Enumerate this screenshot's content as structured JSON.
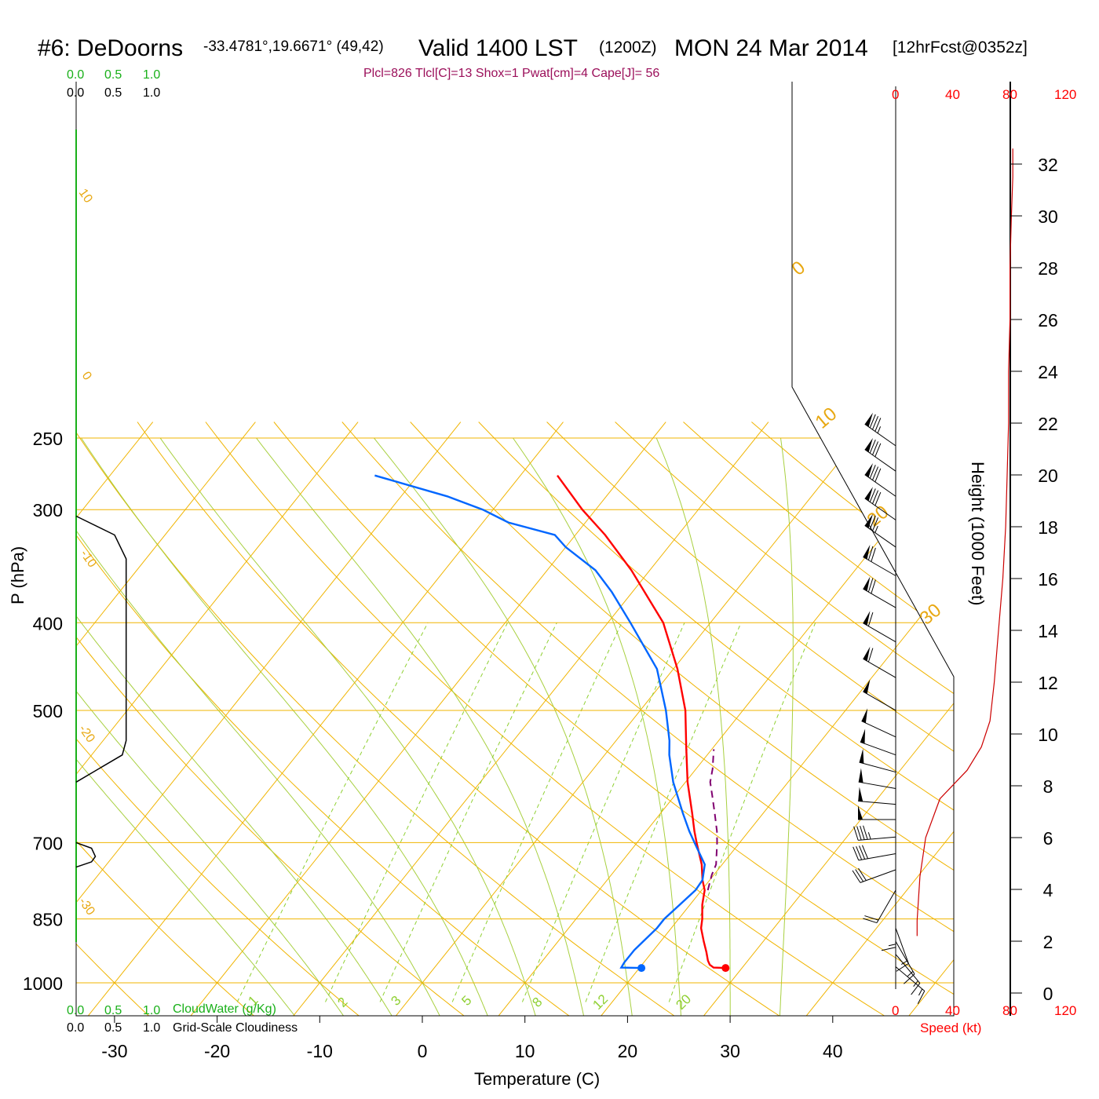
{
  "header": {
    "station": "#6: DeDoorns",
    "coords": "-33.4781°,19.6671° (49,42)",
    "valid": "Valid 1400 LST",
    "zulu": "(1200Z)",
    "date": "MON 24 Mar 2014",
    "forecast": "[12hrFcst@0352z]"
  },
  "params": "Plcl=826 Tlcl[C]=13 Shox=1 Pwat[cm]=4 Cape[J]= 56",
  "cloud_scales": {
    "top_green": [
      "0.0",
      "0.5",
      "1.0"
    ],
    "top_black": [
      "0.0",
      "0.5",
      "1.0"
    ],
    "bottom_green": [
      "0.0",
      "0.5",
      "1.0"
    ],
    "bottom_black": [
      "0.0",
      "0.5",
      "1.0"
    ],
    "cloudwater_label": "CloudWater (g/Kg)",
    "cloudiness_label": "Grid-Scale Cloudiness"
  },
  "speed_scale": {
    "top": [
      "0",
      "40",
      "80",
      "120"
    ],
    "bottom": [
      "0",
      "40",
      "80",
      "120"
    ],
    "label": "Speed (kt)"
  },
  "colors": {
    "temperature": "#ff0000",
    "dewpoint": "#0066ff",
    "parcel": "#800070",
    "isotherm": "#f0b400",
    "dry_adiabat": "#f0b400",
    "moist_adiabat": "#a8d040",
    "mixing_ratio": "#8fd032",
    "cloud_water": "#19b019",
    "speed": "#cc0000"
  },
  "chart_data": {
    "type": "line",
    "title": "",
    "xlabel": "Temperature (C)",
    "ylabel": "P (hPa)",
    "y2label": "Height (1000 Feet)",
    "x_ticks": [
      -30,
      -20,
      -10,
      0,
      10,
      20,
      30,
      40
    ],
    "p_ticks": [
      250,
      300,
      400,
      500,
      700,
      850,
      1000
    ],
    "height_ticks": [
      0,
      2,
      4,
      6,
      8,
      10,
      12,
      14,
      16,
      18,
      20,
      22,
      24,
      26,
      28,
      30,
      32
    ],
    "temperature_labels": [
      "10",
      "0",
      "-10",
      "-20",
      "-30",
      "0",
      "10",
      "20",
      "30"
    ],
    "mixing_ratio_labels": [
      "1",
      "2",
      "3",
      "5",
      "8",
      "12",
      "20"
    ],
    "series": [
      {
        "key": "temperature",
        "name": "",
        "points": [
          [
            963,
            28.4
          ],
          [
            962,
            27.2
          ],
          [
            955,
            26.6
          ],
          [
            945,
            26.1
          ],
          [
            925,
            25.3
          ],
          [
            900,
            24.2
          ],
          [
            870,
            22.9
          ],
          [
            850,
            22.3
          ],
          [
            820,
            21.2
          ],
          [
            800,
            20.6
          ],
          [
            790,
            20.3
          ],
          [
            770,
            19.3
          ],
          [
            740,
            18.0
          ],
          [
            700,
            15.8
          ],
          [
            680,
            14.7
          ],
          [
            650,
            13.1
          ],
          [
            600,
            10.2
          ],
          [
            550,
            7.4
          ],
          [
            500,
            4.4
          ],
          [
            450,
            0.4
          ],
          [
            400,
            -4.6
          ],
          [
            350,
            -11.8
          ],
          [
            320,
            -17.1
          ],
          [
            300,
            -21.3
          ],
          [
            275,
            -26.4
          ]
        ]
      },
      {
        "key": "dewpoint",
        "name": "",
        "points": [
          [
            963,
            20.2
          ],
          [
            962,
            18.2
          ],
          [
            950,
            18.1
          ],
          [
            920,
            18.1
          ],
          [
            900,
            18.3
          ],
          [
            870,
            18.6
          ],
          [
            850,
            18.6
          ],
          [
            820,
            19.0
          ],
          [
            790,
            19.4
          ],
          [
            770,
            19.3
          ],
          [
            740,
            18.3
          ],
          [
            700,
            15.6
          ],
          [
            680,
            14.2
          ],
          [
            650,
            12.2
          ],
          [
            600,
            8.8
          ],
          [
            560,
            6.3
          ],
          [
            540,
            5.2
          ],
          [
            500,
            2.5
          ],
          [
            450,
            -1.6
          ],
          [
            400,
            -7.8
          ],
          [
            370,
            -12.0
          ],
          [
            350,
            -15.3
          ],
          [
            330,
            -20.0
          ],
          [
            320,
            -22.0
          ],
          [
            310,
            -27.5
          ],
          [
            300,
            -31.0
          ],
          [
            290,
            -35.5
          ],
          [
            275,
            -44.2
          ]
        ]
      },
      {
        "key": "parcel",
        "name": "",
        "points": [
          [
            790,
            20.6
          ],
          [
            760,
            19.8
          ],
          [
            740,
            19.4
          ],
          [
            700,
            17.8
          ],
          [
            680,
            16.9
          ],
          [
            650,
            15.3
          ],
          [
            620,
            13.6
          ],
          [
            600,
            12.4
          ],
          [
            580,
            11.6
          ],
          [
            560,
            10.6
          ],
          [
            552,
            10.2
          ]
        ]
      },
      {
        "key": "wind_speed",
        "name": "Speed (kt)",
        "points": [
          [
            0,
            null
          ],
          [
            2.2,
            15
          ],
          [
            2.8,
            15
          ],
          [
            4.5,
            17
          ],
          [
            6,
            21
          ],
          [
            7.5,
            31
          ],
          [
            8.6,
            50
          ],
          [
            9.5,
            60
          ],
          [
            10.5,
            66
          ],
          [
            12,
            69
          ],
          [
            14,
            72
          ],
          [
            16,
            75
          ],
          [
            18,
            77
          ],
          [
            20,
            78
          ],
          [
            22,
            79
          ],
          [
            24,
            79
          ],
          [
            26,
            80
          ],
          [
            28,
            80
          ],
          [
            30,
            81
          ],
          [
            31.5,
            82
          ],
          [
            32.6,
            82
          ]
        ]
      },
      {
        "key": "cloudiness",
        "name": "Grid-Scale Cloudiness",
        "points": [
          [
            305,
            0.0
          ],
          [
            320,
            0.5
          ],
          [
            340,
            0.65
          ],
          [
            540,
            0.65
          ],
          [
            560,
            0.6
          ],
          [
            600,
            0.0
          ],
          [
            700,
            0.0
          ],
          [
            710,
            0.2
          ],
          [
            725,
            0.25
          ],
          [
            735,
            0.2
          ],
          [
            745,
            0.0
          ]
        ]
      }
    ],
    "wind_barbs": [
      {
        "p": 255,
        "dir": 305,
        "kt": 85
      },
      {
        "p": 272,
        "dir": 305,
        "kt": 82
      },
      {
        "p": 290,
        "dir": 305,
        "kt": 80
      },
      {
        "p": 308,
        "dir": 305,
        "kt": 78
      },
      {
        "p": 330,
        "dir": 305,
        "kt": 75
      },
      {
        "p": 355,
        "dir": 300,
        "kt": 72
      },
      {
        "p": 385,
        "dir": 300,
        "kt": 68
      },
      {
        "p": 420,
        "dir": 300,
        "kt": 62
      },
      {
        "p": 460,
        "dir": 300,
        "kt": 58
      },
      {
        "p": 500,
        "dir": 300,
        "kt": 52
      },
      {
        "p": 535,
        "dir": 295,
        "kt": 52
      },
      {
        "p": 560,
        "dir": 290,
        "kt": 52
      },
      {
        "p": 585,
        "dir": 285,
        "kt": 52
      },
      {
        "p": 610,
        "dir": 280,
        "kt": 52
      },
      {
        "p": 635,
        "dir": 275,
        "kt": 52
      },
      {
        "p": 660,
        "dir": 270,
        "kt": 52
      },
      {
        "p": 690,
        "dir": 265,
        "kt": 45
      },
      {
        "p": 720,
        "dir": 260,
        "kt": 40
      },
      {
        "p": 750,
        "dir": 250,
        "kt": 30
      },
      {
        "p": 790,
        "dir": 210,
        "kt": 20
      },
      {
        "p": 830,
        "dir": 180,
        "kt": 15
      },
      {
        "p": 870,
        "dir": 160,
        "kt": 15
      },
      {
        "p": 900,
        "dir": 150,
        "kt": 15
      },
      {
        "p": 930,
        "dir": 140,
        "kt": 15
      },
      {
        "p": 960,
        "dir": 130,
        "kt": 15
      }
    ]
  }
}
